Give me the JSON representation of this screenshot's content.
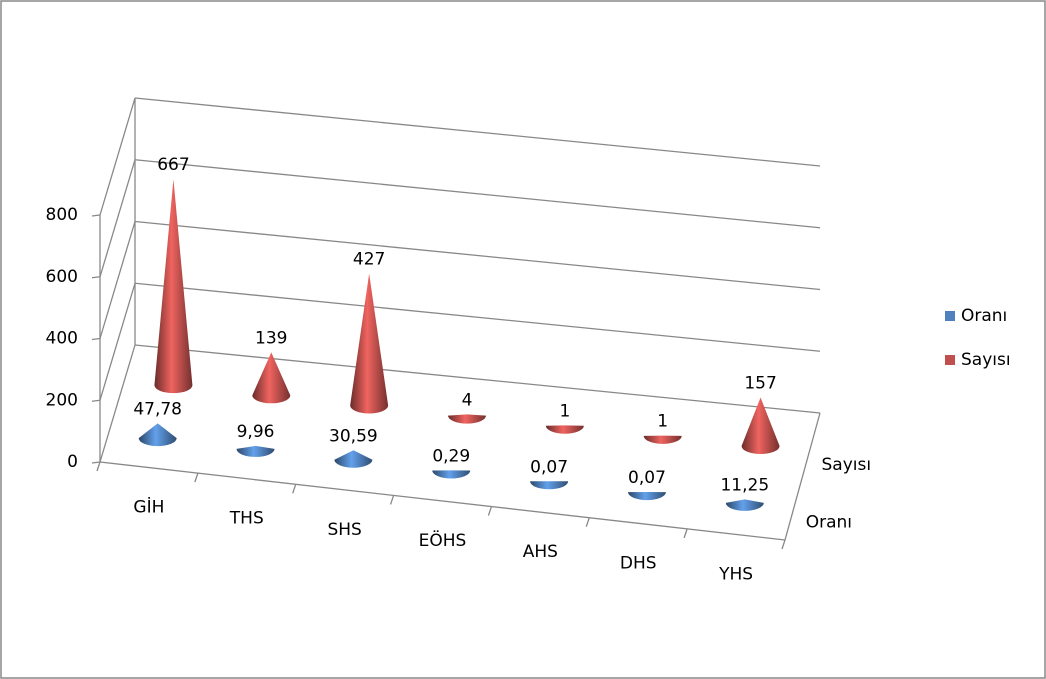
{
  "chart_data": {
    "type": "cone3d",
    "categories": [
      "GİH",
      "THS",
      "SHS",
      "EÖHS",
      "AHS",
      "DHS",
      "YHS"
    ],
    "series": [
      {
        "name": "Oranı",
        "color": "#4F81BD",
        "values": [
          47.78,
          9.96,
          30.59,
          0.29,
          0.07,
          0.07,
          11.25
        ],
        "value_labels": [
          "47,78",
          "9,96",
          "30,59",
          "0,29",
          "0,07",
          "0,07",
          "11,25"
        ]
      },
      {
        "name": "Sayısı",
        "color": "#C0504D",
        "values": [
          667,
          139,
          427,
          4,
          1,
          1,
          157
        ]
      }
    ],
    "ylim": [
      0,
      800
    ],
    "yticks": [
      0,
      200,
      400,
      600,
      800
    ],
    "grid": true,
    "legend": "right"
  }
}
